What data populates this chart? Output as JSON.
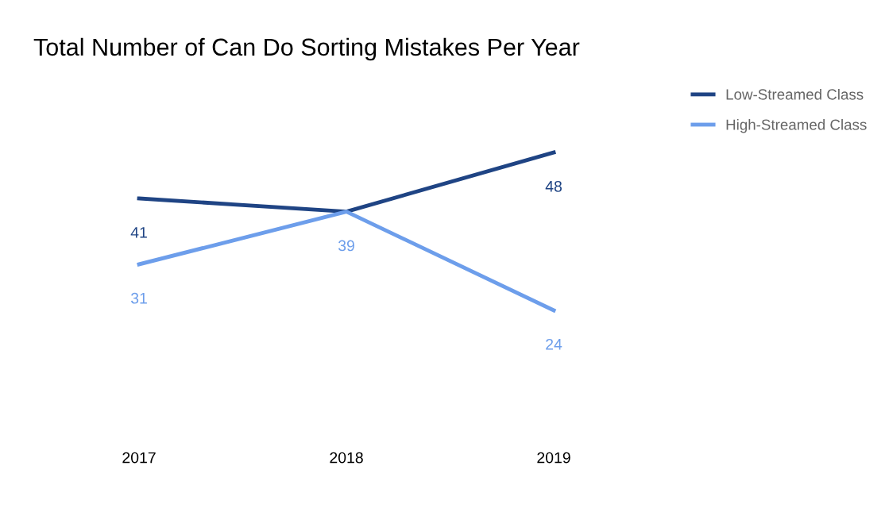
{
  "chart_data": {
    "type": "line",
    "title": "Total Number of Can Do Sorting Mistakes Per Year",
    "categories": [
      "2017",
      "2018",
      "2019"
    ],
    "series": [
      {
        "name": "Low-Streamed Class",
        "color": "#1f4484",
        "values": [
          41,
          39,
          48
        ],
        "value_labels": [
          "41",
          null,
          "48"
        ]
      },
      {
        "name": "High-Streamed Class",
        "color": "#6d9eeb",
        "values": [
          31,
          39,
          24
        ],
        "value_labels": [
          "31",
          "39",
          "24"
        ]
      }
    ],
    "legend": "top right",
    "marker": "none",
    "line_style": "solid"
  }
}
